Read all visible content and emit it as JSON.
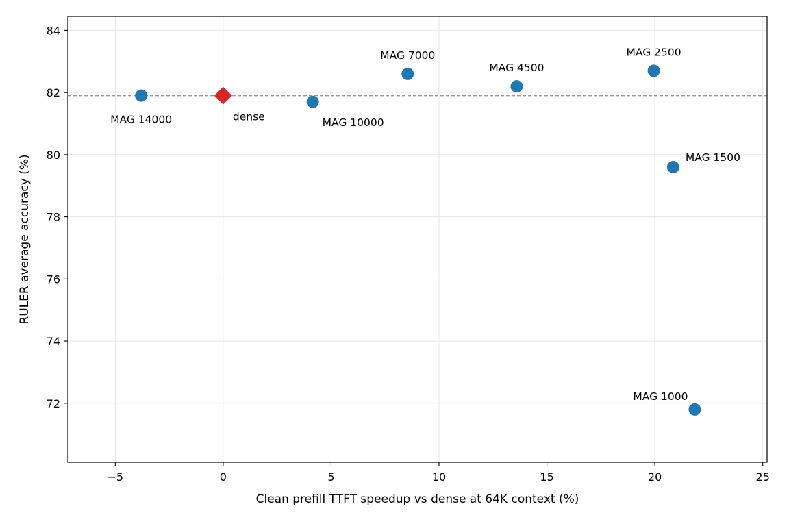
{
  "chart_data": {
    "type": "scatter",
    "title": "",
    "xlabel": "Clean prefill TTFT speedup vs dense at 64K context (%)",
    "ylabel": "RULER average accuracy (%)",
    "xlim": [
      -7.2,
      25.2
    ],
    "ylim": [
      70.1,
      84.45
    ],
    "xticks": [
      -5,
      0,
      5,
      10,
      15,
      20,
      25
    ],
    "yticks": [
      72,
      74,
      76,
      78,
      80,
      82,
      84
    ],
    "grid": true,
    "reference_line": {
      "y": 81.9,
      "style": "dashed",
      "color": "#999999"
    },
    "colors": {
      "mag": "#1f77b4",
      "dense": "#d62728"
    },
    "points": [
      {
        "label": "MAG 14000",
        "x": -3.8,
        "y": 81.9,
        "marker": "circle",
        "label_pos": "below"
      },
      {
        "label": "dense",
        "x": 0.0,
        "y": 81.9,
        "marker": "diamond",
        "label_pos": "below-right"
      },
      {
        "label": "MAG 10000",
        "x": 4.15,
        "y": 81.7,
        "marker": "circle",
        "label_pos": "below-right"
      },
      {
        "label": "MAG 7000",
        "x": 8.55,
        "y": 82.6,
        "marker": "circle",
        "label_pos": "above"
      },
      {
        "label": "MAG 4500",
        "x": 13.6,
        "y": 82.2,
        "marker": "circle",
        "label_pos": "above"
      },
      {
        "label": "MAG 2500",
        "x": 19.95,
        "y": 82.7,
        "marker": "circle",
        "label_pos": "above"
      },
      {
        "label": "MAG 1500",
        "x": 20.85,
        "y": 79.6,
        "marker": "circle",
        "label_pos": "above-right"
      },
      {
        "label": "MAG 1000",
        "x": 21.85,
        "y": 71.8,
        "marker": "circle",
        "label_pos": "above-left"
      }
    ]
  }
}
